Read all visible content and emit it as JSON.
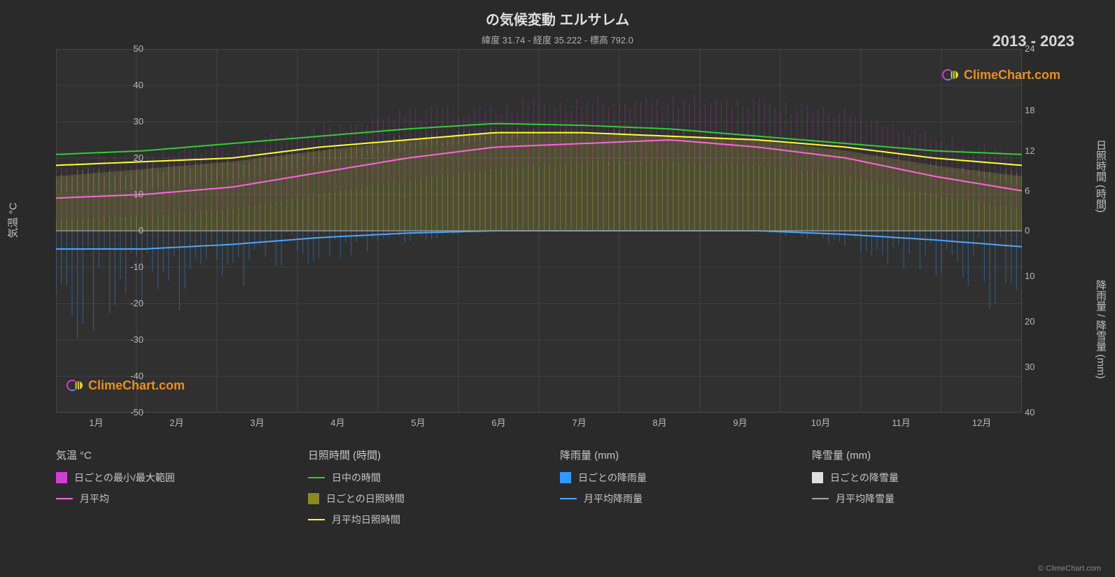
{
  "title": "の気候変動 エルサレム",
  "subtitle": "緯度 31.74 - 経度 35.222 - 標高 792.0",
  "year_range": "2013 - 2023",
  "credit": "© ClimeChart.com",
  "watermark_text": "ClimeChart.com",
  "watermark_color": "#e89020",
  "chart": {
    "type": "climate-composite",
    "background_color": "#2a2a2a",
    "plot_bg": "#303030",
    "grid_color": "#505050",
    "border_color": "#707070",
    "x_labels": [
      "1月",
      "2月",
      "3月",
      "4月",
      "5月",
      "6月",
      "7月",
      "8月",
      "9月",
      "10月",
      "11月",
      "12月"
    ],
    "left_axis": {
      "label": "気温 °C",
      "min": -50,
      "max": 50,
      "step": 10,
      "ticks": [
        -50,
        -40,
        -30,
        -20,
        -10,
        0,
        10,
        20,
        30,
        40,
        50
      ]
    },
    "right_axis_top": {
      "label": "日照時間 (時間)",
      "ticks": [
        0,
        6,
        12,
        18,
        24
      ],
      "min": 0,
      "max": 24
    },
    "right_axis_bottom": {
      "label": "降雨量 / 降雪量 (mm)",
      "ticks": [
        0,
        10,
        20,
        30,
        40
      ],
      "min": 0,
      "max": 40
    },
    "series": {
      "temp_range_band": {
        "color_hi": "#d040d0",
        "color_lo": "#4a0a4a",
        "opacity": 0.55,
        "min": [
          3,
          4,
          6,
          10,
          14,
          17,
          19,
          19,
          18,
          15,
          10,
          6
        ],
        "max": [
          18,
          19,
          22,
          27,
          31,
          33,
          34,
          35,
          34,
          31,
          25,
          19
        ]
      },
      "temp_avg": {
        "color": "#ff66d9",
        "width": 2,
        "values": [
          9,
          10,
          12,
          16,
          20,
          23,
          24,
          25,
          23,
          20,
          15,
          11
        ]
      },
      "daylight": {
        "color": "#33cc33",
        "width": 2,
        "values_temp_scale": [
          21,
          22,
          24,
          26,
          28,
          29.5,
          29,
          28,
          26,
          24,
          22,
          21
        ]
      },
      "sunshine_daily_band": {
        "color": "#c0c040",
        "opacity": 0.6,
        "top_temp_scale": [
          15,
          17,
          19,
          22,
          25,
          27,
          27,
          26,
          25,
          22,
          18,
          15
        ]
      },
      "sunshine_avg": {
        "color": "#ffff33",
        "width": 2,
        "values_temp_scale": [
          18,
          19,
          20,
          23,
          25,
          27,
          27,
          26,
          25,
          23,
          20,
          18
        ]
      },
      "rain_daily_bars": {
        "color": "#3399ff",
        "opacity": 0.4,
        "peaks_mm": [
          18,
          15,
          10,
          5,
          2,
          0,
          0,
          0,
          0,
          3,
          8,
          16
        ]
      },
      "rain_avg": {
        "color": "#4da6ff",
        "width": 2,
        "values_mm": [
          4,
          4,
          3,
          1.5,
          0.5,
          0,
          0,
          0,
          0,
          0.8,
          2,
          3.5
        ]
      },
      "snow_avg": {
        "color": "#aaaaaa",
        "width": 1.5,
        "values_mm": [
          0,
          0,
          0,
          0,
          0,
          0,
          0,
          0,
          0,
          0,
          0,
          0
        ]
      }
    }
  },
  "legend": {
    "columns": [
      {
        "header": "気温 °C",
        "items": [
          {
            "type": "swatch",
            "color": "#d040d0",
            "label": "日ごとの最小/最大範囲"
          },
          {
            "type": "line",
            "color": "#ff66d9",
            "label": "月平均"
          }
        ]
      },
      {
        "header": "日照時間 (時間)",
        "items": [
          {
            "type": "line",
            "color": "#33cc33",
            "label": "日中の時間"
          },
          {
            "type": "swatch",
            "color": "#8a8a20",
            "label": "日ごとの日照時間"
          },
          {
            "type": "line",
            "color": "#ffff33",
            "label": "月平均日照時間"
          }
        ]
      },
      {
        "header": "降雨量 (mm)",
        "items": [
          {
            "type": "swatch",
            "color": "#3399ff",
            "label": "日ごとの降雨量"
          },
          {
            "type": "line",
            "color": "#4da6ff",
            "label": "月平均降雨量"
          }
        ]
      },
      {
        "header": "降雪量 (mm)",
        "items": [
          {
            "type": "swatch",
            "color": "#e0e0e0",
            "label": "日ごとの降雪量"
          },
          {
            "type": "line",
            "color": "#aaaaaa",
            "label": "月平均降雪量"
          }
        ]
      }
    ]
  }
}
